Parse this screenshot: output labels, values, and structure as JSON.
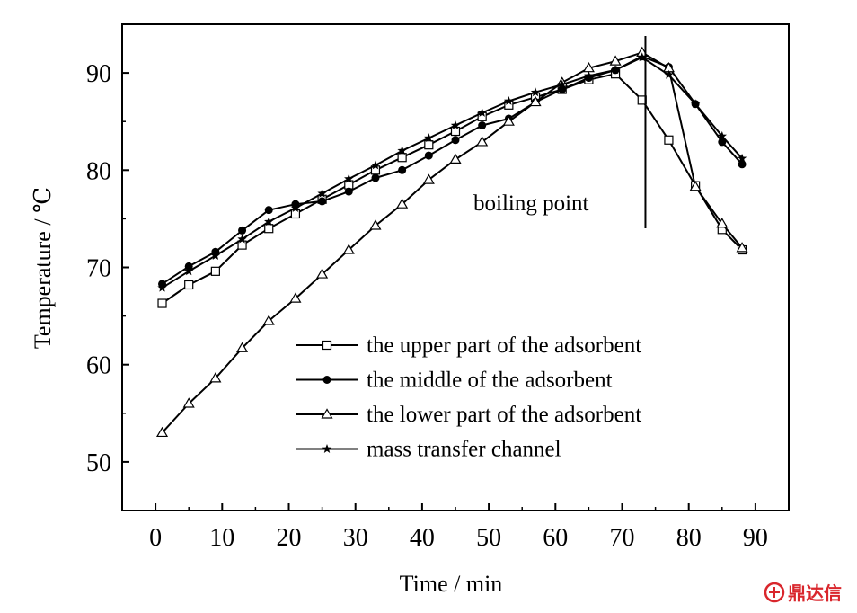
{
  "chart_data": {
    "type": "line",
    "title": "",
    "xlabel": "Time / min",
    "ylabel": "Temperature / ℃",
    "xlim": [
      -5,
      95
    ],
    "ylim": [
      45,
      95
    ],
    "x_ticks": [
      0,
      10,
      20,
      30,
      40,
      50,
      60,
      70,
      80,
      90
    ],
    "x_tick_labels": [
      "0",
      "10",
      "20",
      "30",
      "40",
      "50",
      "60",
      "70",
      "80",
      "90"
    ],
    "y_ticks": [
      50,
      60,
      70,
      80,
      90
    ],
    "y_tick_labels": [
      "50",
      "60",
      "70",
      "80",
      "90"
    ],
    "grid": false,
    "legend_position": "lower-right",
    "annotation": {
      "text": "boiling point",
      "x": 73.5
    },
    "series": [
      {
        "name": "the upper part of the adsorbent",
        "marker": "open-square",
        "x": [
          1,
          5,
          9,
          13,
          17,
          21,
          25,
          29,
          33,
          37,
          41,
          45,
          49,
          53,
          57,
          61,
          65,
          69,
          73,
          77,
          81,
          85,
          88
        ],
        "y": [
          66.3,
          68.2,
          69.6,
          72.3,
          74.0,
          75.5,
          77.0,
          78.5,
          80.0,
          81.3,
          82.6,
          84.0,
          85.5,
          86.7,
          87.5,
          88.3,
          89.3,
          89.9,
          87.2,
          83.1,
          78.4,
          73.9,
          71.8
        ]
      },
      {
        "name": "the middle of the adsorbent",
        "marker": "filled-circle",
        "x": [
          1,
          5,
          9,
          13,
          17,
          21,
          25,
          29,
          33,
          37,
          41,
          45,
          49,
          53,
          57,
          61,
          65,
          69,
          73,
          77,
          81,
          85,
          88
        ],
        "y": [
          68.3,
          70.1,
          71.6,
          73.8,
          75.9,
          76.5,
          76.8,
          77.8,
          79.2,
          80.0,
          81.5,
          83.1,
          84.6,
          85.3,
          87.0,
          88.3,
          89.5,
          90.3,
          91.7,
          90.6,
          86.8,
          82.9,
          80.6
        ]
      },
      {
        "name": "the lower part of the adsorbent",
        "marker": "open-triangle",
        "x": [
          1,
          5,
          9,
          13,
          17,
          21,
          25,
          29,
          33,
          37,
          41,
          45,
          49,
          53,
          57,
          61,
          65,
          69,
          73,
          77,
          81,
          85,
          88
        ],
        "y": [
          53.0,
          56.0,
          58.6,
          61.7,
          64.5,
          66.8,
          69.3,
          71.8,
          74.3,
          76.5,
          79.0,
          81.1,
          82.9,
          85.0,
          87.0,
          89.0,
          90.5,
          91.2,
          92.1,
          90.5,
          78.3,
          74.5,
          72.0
        ]
      },
      {
        "name": "mass transfer channel",
        "marker": "filled-star",
        "x": [
          1,
          5,
          9,
          13,
          17,
          21,
          25,
          29,
          33,
          37,
          41,
          45,
          49,
          53,
          57,
          61,
          65,
          69,
          73,
          77,
          81,
          85,
          88
        ],
        "y": [
          67.9,
          69.6,
          71.2,
          72.9,
          74.7,
          76.1,
          77.6,
          79.1,
          80.5,
          82.0,
          83.3,
          84.6,
          85.9,
          87.1,
          88.0,
          88.8,
          89.7,
          90.3,
          91.6,
          89.8,
          86.8,
          83.5,
          81.2
        ]
      }
    ]
  },
  "watermark": {
    "text": "鼎达信"
  }
}
